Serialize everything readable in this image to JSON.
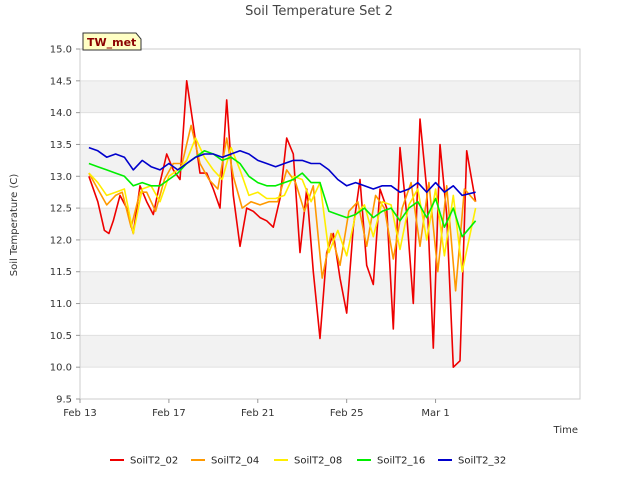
{
  "chart_data": {
    "type": "line",
    "title": "Soil Temperature Set 2",
    "xlabel": "Time",
    "ylabel": "Soil Temperature (C)",
    "tag": "TW_met",
    "ylim": [
      9.5,
      15.0
    ],
    "xlim": [
      0,
      22.5
    ],
    "yticks": [
      9.5,
      10.0,
      10.5,
      11.0,
      11.5,
      12.0,
      12.5,
      13.0,
      13.5,
      14.0,
      14.5,
      15.0
    ],
    "ytick_labels": [
      "9.5",
      "10.0",
      "10.5",
      "11.0",
      "11.5",
      "12.0",
      "12.5",
      "13.0",
      "13.5",
      "14.0",
      "14.5",
      "15.0"
    ],
    "xticks": [
      0,
      4,
      8,
      12,
      16
    ],
    "xtick_labels": [
      "Feb 13",
      "Feb 17",
      "Feb 21",
      "Feb 25",
      "Mar 1"
    ],
    "grid": true,
    "legend_position": "bottom",
    "series": [
      {
        "name": "SoilT2_02",
        "color": "#ee0000",
        "x": [
          0.4,
          0.8,
          1.1,
          1.3,
          1.5,
          1.8,
          2.1,
          2.4,
          2.7,
          3.0,
          3.3,
          3.6,
          3.9,
          4.2,
          4.5,
          4.8,
          5.1,
          5.4,
          5.7,
          6.0,
          6.3,
          6.6,
          6.9,
          7.2,
          7.5,
          7.8,
          8.1,
          8.4,
          8.7,
          9.0,
          9.3,
          9.6,
          9.9,
          10.2,
          10.5,
          10.8,
          11.1,
          11.4,
          11.7,
          12.0,
          12.3,
          12.6,
          12.9,
          13.2,
          13.5,
          13.8,
          14.1,
          14.4,
          14.7,
          15.0,
          15.3,
          15.6,
          15.9,
          16.2,
          16.5,
          16.8,
          17.1,
          17.4,
          17.6,
          17.8
        ],
        "values": [
          13.0,
          12.6,
          12.15,
          12.1,
          12.3,
          12.7,
          12.5,
          12.1,
          12.85,
          12.6,
          12.4,
          12.9,
          13.35,
          13.1,
          12.95,
          14.5,
          13.8,
          13.05,
          13.05,
          12.8,
          12.5,
          14.2,
          12.7,
          11.9,
          12.5,
          12.45,
          12.35,
          12.3,
          12.2,
          12.65,
          13.6,
          13.35,
          11.8,
          12.8,
          11.5,
          10.45,
          11.8,
          12.1,
          11.4,
          10.85,
          12.2,
          12.95,
          11.6,
          11.3,
          12.8,
          12.5,
          10.6,
          13.45,
          12.4,
          11.0,
          13.9,
          12.8,
          10.3,
          13.5,
          12.4,
          10.0,
          10.1,
          13.4,
          13.0,
          12.6
        ]
      },
      {
        "name": "SoilT2_04",
        "color": "#ff9900",
        "x": [
          0.4,
          0.8,
          1.2,
          1.6,
          1.9,
          2.3,
          2.7,
          3.0,
          3.4,
          3.8,
          4.2,
          4.6,
          5.0,
          5.4,
          5.8,
          6.2,
          6.6,
          6.9,
          7.3,
          7.7,
          8.1,
          8.5,
          8.9,
          9.3,
          9.7,
          10.1,
          10.5,
          10.9,
          11.3,
          11.7,
          12.1,
          12.5,
          12.9,
          13.3,
          13.7,
          14.1,
          14.5,
          14.9,
          15.3,
          15.7,
          16.1,
          16.5,
          16.9,
          17.3,
          17.8
        ],
        "values": [
          13.05,
          12.8,
          12.55,
          12.7,
          12.75,
          12.2,
          12.75,
          12.75,
          12.45,
          12.95,
          13.2,
          13.2,
          13.8,
          13.2,
          12.95,
          12.8,
          13.6,
          13.0,
          12.5,
          12.6,
          12.55,
          12.6,
          12.6,
          13.1,
          12.9,
          12.45,
          12.85,
          11.4,
          12.1,
          11.6,
          12.45,
          12.6,
          11.9,
          12.7,
          12.5,
          11.7,
          12.5,
          12.9,
          11.9,
          12.9,
          11.5,
          12.85,
          11.2,
          12.8,
          12.6
        ]
      },
      {
        "name": "SoilT2_08",
        "color": "#ffee00",
        "x": [
          0.4,
          0.8,
          1.2,
          1.6,
          2.0,
          2.4,
          2.8,
          3.2,
          3.6,
          4.0,
          4.4,
          4.8,
          5.2,
          5.6,
          6.0,
          6.4,
          6.8,
          7.2,
          7.6,
          8.0,
          8.4,
          8.8,
          9.2,
          9.6,
          10.0,
          10.4,
          10.8,
          11.2,
          11.6,
          12.0,
          12.4,
          12.8,
          13.2,
          13.6,
          14.0,
          14.4,
          14.8,
          15.2,
          15.6,
          16.0,
          16.4,
          16.8,
          17.2,
          17.8
        ],
        "values": [
          13.05,
          12.9,
          12.7,
          12.75,
          12.8,
          12.1,
          12.8,
          12.85,
          12.6,
          13.0,
          13.1,
          13.25,
          13.6,
          13.3,
          13.1,
          12.95,
          13.45,
          13.1,
          12.7,
          12.75,
          12.65,
          12.65,
          12.7,
          13.0,
          12.95,
          12.6,
          12.9,
          11.8,
          12.15,
          11.75,
          12.4,
          12.55,
          12.05,
          12.6,
          12.55,
          11.85,
          12.55,
          12.8,
          12.0,
          12.8,
          11.75,
          12.7,
          11.5,
          12.5
        ]
      },
      {
        "name": "SoilT2_16",
        "color": "#00ee00",
        "x": [
          0.4,
          0.8,
          1.2,
          1.6,
          2.0,
          2.4,
          2.8,
          3.2,
          3.6,
          4.0,
          4.4,
          4.8,
          5.2,
          5.6,
          6.0,
          6.4,
          6.8,
          7.2,
          7.6,
          8.0,
          8.4,
          8.8,
          9.2,
          9.6,
          10.0,
          10.4,
          10.8,
          11.2,
          11.6,
          12.0,
          12.4,
          12.8,
          13.2,
          13.6,
          14.0,
          14.4,
          14.8,
          15.2,
          15.6,
          16.0,
          16.4,
          16.8,
          17.2,
          17.8
        ],
        "values": [
          13.2,
          13.15,
          13.1,
          13.05,
          13.0,
          12.85,
          12.9,
          12.85,
          12.85,
          12.95,
          13.05,
          13.2,
          13.3,
          13.4,
          13.35,
          13.25,
          13.3,
          13.2,
          13.0,
          12.9,
          12.85,
          12.85,
          12.9,
          12.95,
          13.05,
          12.9,
          12.9,
          12.45,
          12.4,
          12.35,
          12.4,
          12.5,
          12.35,
          12.45,
          12.5,
          12.3,
          12.5,
          12.6,
          12.35,
          12.65,
          12.2,
          12.5,
          12.05,
          12.3
        ]
      },
      {
        "name": "SoilT2_32",
        "color": "#0000cc",
        "x": [
          0.4,
          0.8,
          1.2,
          1.6,
          2.0,
          2.4,
          2.8,
          3.2,
          3.6,
          4.0,
          4.4,
          4.8,
          5.2,
          5.6,
          6.0,
          6.4,
          6.8,
          7.2,
          7.6,
          8.0,
          8.4,
          8.8,
          9.2,
          9.6,
          10.0,
          10.4,
          10.8,
          11.2,
          11.6,
          12.0,
          12.4,
          12.8,
          13.2,
          13.6,
          14.0,
          14.4,
          14.8,
          15.2,
          15.6,
          16.0,
          16.4,
          16.8,
          17.2,
          17.8
        ],
        "values": [
          13.45,
          13.4,
          13.3,
          13.35,
          13.3,
          13.1,
          13.25,
          13.15,
          13.1,
          13.2,
          13.1,
          13.2,
          13.3,
          13.35,
          13.35,
          13.3,
          13.35,
          13.4,
          13.35,
          13.25,
          13.2,
          13.15,
          13.2,
          13.25,
          13.25,
          13.2,
          13.2,
          13.1,
          12.95,
          12.85,
          12.9,
          12.85,
          12.8,
          12.85,
          12.85,
          12.75,
          12.8,
          12.9,
          12.75,
          12.9,
          12.75,
          12.85,
          12.7,
          12.75
        ]
      }
    ]
  }
}
